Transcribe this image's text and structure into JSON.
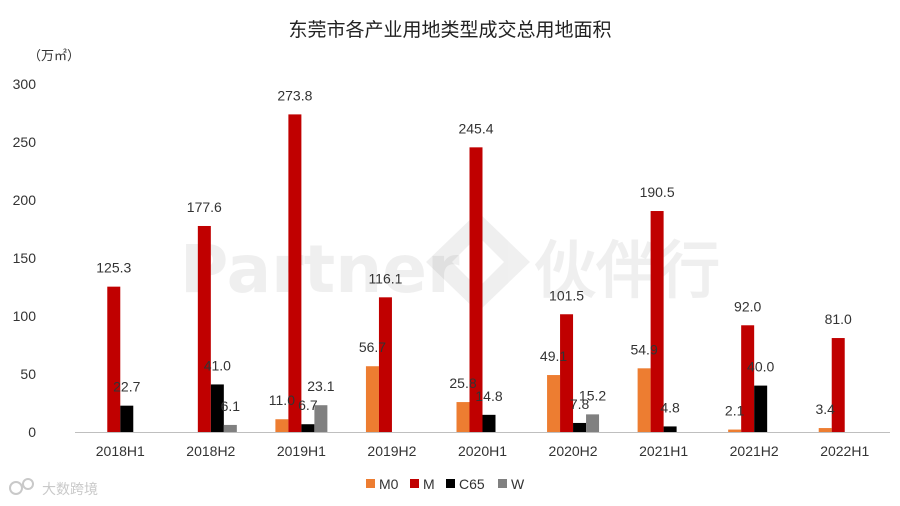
{
  "chart_data": {
    "type": "bar",
    "title": "东莞市各产业用地类型成交总用地面积",
    "unit_label": "（万㎡）",
    "ylim": [
      0,
      300
    ],
    "yticks": [
      0,
      50,
      100,
      150,
      200,
      250,
      300
    ],
    "categories": [
      "2018H1",
      "2018H2",
      "2019H1",
      "2019H2",
      "2020H1",
      "2020H2",
      "2021H1",
      "2021H2",
      "2022H1"
    ],
    "series": [
      {
        "name": "M0",
        "color": "#ed7d31",
        "values": [
          null,
          null,
          11.0,
          56.7,
          25.8,
          49.1,
          54.9,
          2.1,
          3.4
        ]
      },
      {
        "name": "M",
        "color": "#c00000",
        "values": [
          125.3,
          177.6,
          273.8,
          116.1,
          245.4,
          101.5,
          190.5,
          92.0,
          81.0
        ]
      },
      {
        "name": "C65",
        "color": "#000000",
        "values": [
          22.7,
          41.0,
          6.7,
          null,
          14.8,
          7.8,
          4.8,
          40.0,
          null
        ]
      },
      {
        "name": "W",
        "color": "#808080",
        "values": [
          null,
          6.1,
          23.1,
          null,
          null,
          15.2,
          null,
          null,
          null
        ]
      }
    ],
    "legend_position": "bottom",
    "grid": false
  },
  "watermark": {
    "text_latin": "Partner",
    "text_cn": "伙伴行"
  },
  "footer": {
    "brand": "大数跨境",
    "logo_icon": "ds-logo-icon"
  }
}
